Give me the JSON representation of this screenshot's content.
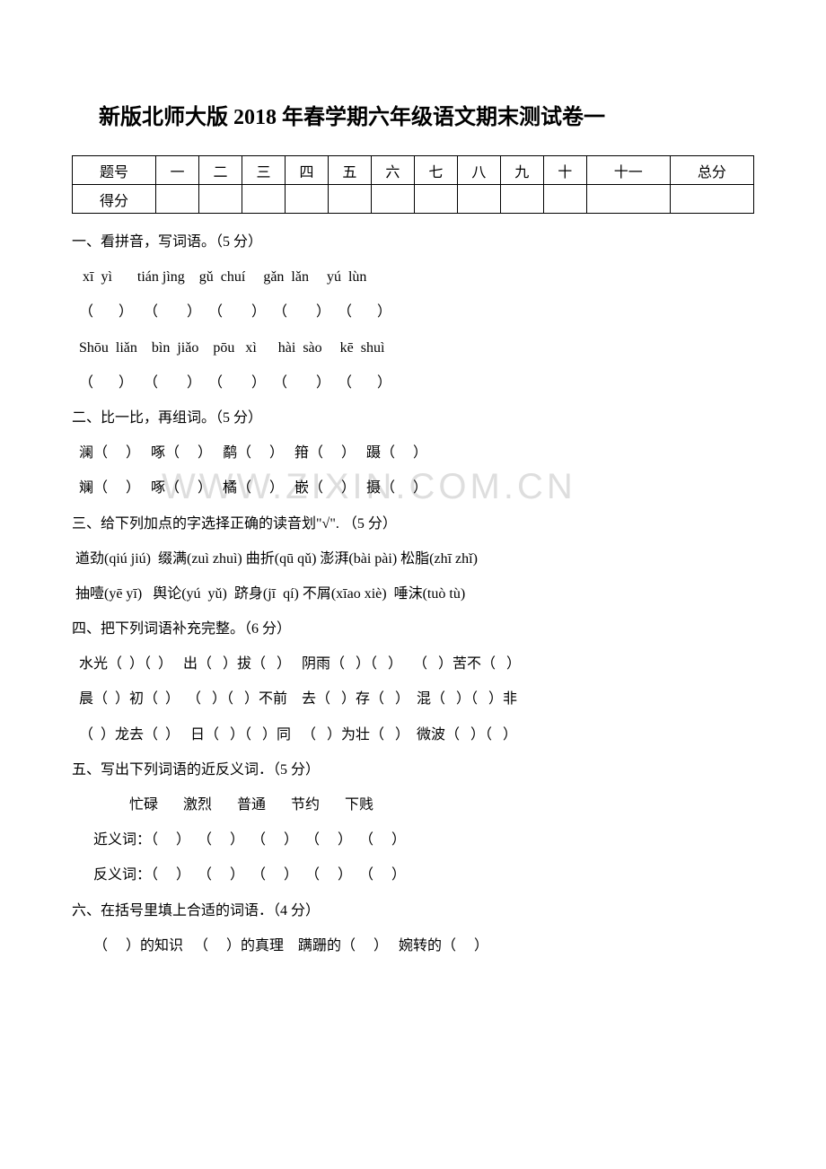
{
  "title": "新版北师大版 2018 年春学期六年级语文期末测试卷一",
  "table": {
    "headers": [
      "题号",
      "一",
      "二",
      "三",
      "四",
      "五",
      "六",
      "七",
      "八",
      "九",
      "十",
      "十一",
      "总分"
    ],
    "row2_label": "得分"
  },
  "sections": {
    "s1": "一、看拼音，写词语。（5 分）",
    "s1_l1": "   xī  yì       tián jìng    gǔ  chuí     gǎn  lǎn     yú  lùn",
    "s1_l2": "  （       ）   （        ）  （        ）  （        ）  （       ）",
    "s1_l3": "  Shōu  liǎn    bìn  jiǎo    pōu   xì      hài  sào     kē  shuì",
    "s1_l4": "  （       ）   （        ）  （        ）  （        ）  （       ）",
    "s2": "二、比一比，再组词。（5 分）",
    "s2_l1": "  澜（     ）   啄（     ）   鹬（     ）   箝（     ）   蹑（     ）",
    "s2_l2": "  斓（     ）   啄（     ）   橘（     ）   嵌（     ）   摄（     ）",
    "s3": "三、给下列加点的字选择正确的读音划\"√\".  （5 分）",
    "s3_l1": " 遒劲(qiú jiú)  缀满(zuì zhuì) 曲折(qū qǔ) 澎湃(bài pài) 松脂(zhī zhǐ)",
    "s3_l2": " 抽噎(yē yī)   舆论(yú  yǔ)  跻身(jī  qí) 不屑(xīao xiè)  唾沫(tuò tù)",
    "s4": "四、把下列词语补充完整。（6 分）",
    "s4_l1": "  水光（  ）（  ）   出（   ）拔（   ）   阴雨（   ）（   ）   （   ）苦不（   ）",
    "s4_l2": "  晨（  ）初（  ）  （   ）（   ）不前    去（   ）存（   ）  混（   ）（   ）非",
    "s4_l3": "  （  ）龙去（  ）   日（   ）（   ）同   （   ）为壮（   ）  微波（   ）（   ）",
    "s5": "五、写出下列词语的近反义词．（5 分）",
    "s5_l1": "                忙碌       激烈       普通       节约       下贱",
    "s5_l2": "      近义词：（     ）  （     ）  （     ）  （     ）  （     ）",
    "s5_l3": "      反义词：（     ）  （     ）  （     ）  （     ）  （     ）",
    "s6": "六、在括号里填上合适的词语．（4 分）",
    "s6_l1": "      （     ）的知识   （     ）的真理    蹒跚的（     ）   婉转的（     ）"
  },
  "watermark": "WWW.ZIXIN.COM.CN",
  "colors": {
    "text": "#000000",
    "bg": "#ffffff",
    "border": "#000000",
    "wm": "rgba(160,160,160,0.35)"
  },
  "fonts": {
    "title_size": 24,
    "body_size": 16
  }
}
